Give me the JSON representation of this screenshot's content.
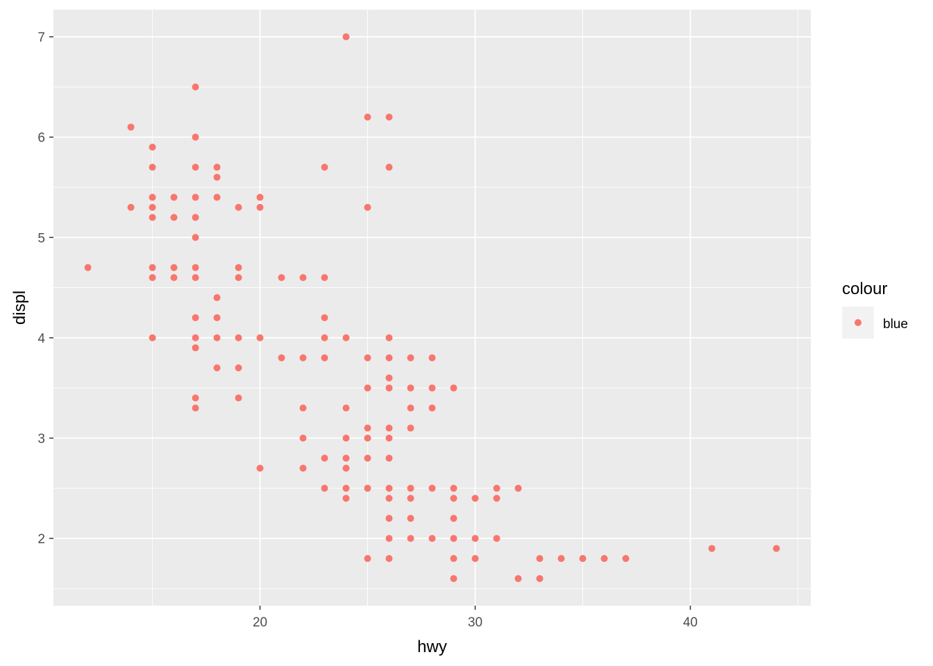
{
  "chart_data": {
    "type": "scatter",
    "title": "",
    "xlabel": "hwy",
    "ylabel": "displ",
    "xlim": [
      10.4,
      45.6
    ],
    "ylim": [
      1.33,
      7.27
    ],
    "x_ticks": [
      20,
      30,
      40
    ],
    "x_tick_labels": [
      "20",
      "30",
      "40"
    ],
    "x_minor_ticks": [
      15,
      25,
      35,
      45
    ],
    "y_ticks": [
      2,
      3,
      4,
      5,
      6,
      7
    ],
    "y_tick_labels": [
      "2",
      "3",
      "4",
      "5",
      "6",
      "7"
    ],
    "y_minor_ticks": [
      1.5,
      2.5,
      3.5,
      4.5,
      5.5,
      6.5
    ],
    "grid": true,
    "legend": {
      "title": "colour",
      "placement": "right",
      "entries": [
        {
          "label": "blue",
          "color": "#F8766D"
        }
      ]
    },
    "colors": {
      "point": "#F8766D",
      "panel_background": "#EBEBEB",
      "grid": "#FFFFFF"
    },
    "points": [
      [
        12,
        4.7
      ],
      [
        14,
        6.1
      ],
      [
        14,
        5.3
      ],
      [
        15,
        5.9
      ],
      [
        15,
        5.7
      ],
      [
        15,
        5.4
      ],
      [
        15,
        5.3
      ],
      [
        15,
        5.2
      ],
      [
        15,
        4.7
      ],
      [
        15,
        4.6
      ],
      [
        15,
        4.0
      ],
      [
        16,
        5.4
      ],
      [
        16,
        5.2
      ],
      [
        16,
        4.7
      ],
      [
        16,
        4.6
      ],
      [
        17,
        6.5
      ],
      [
        17,
        6.0
      ],
      [
        17,
        5.7
      ],
      [
        17,
        5.4
      ],
      [
        17,
        5.2
      ],
      [
        17,
        5.0
      ],
      [
        17,
        4.7
      ],
      [
        17,
        4.6
      ],
      [
        17,
        4.2
      ],
      [
        17,
        4.0
      ],
      [
        17,
        3.9
      ],
      [
        17,
        3.4
      ],
      [
        17,
        3.3
      ],
      [
        18,
        5.7
      ],
      [
        18,
        5.6
      ],
      [
        18,
        5.4
      ],
      [
        18,
        4.4
      ],
      [
        18,
        4.2
      ],
      [
        18,
        4.0
      ],
      [
        18,
        3.7
      ],
      [
        19,
        5.3
      ],
      [
        19,
        4.7
      ],
      [
        19,
        4.6
      ],
      [
        19,
        4.0
      ],
      [
        19,
        3.7
      ],
      [
        19,
        3.4
      ],
      [
        20,
        5.4
      ],
      [
        20,
        5.3
      ],
      [
        20,
        4.0
      ],
      [
        20,
        2.7
      ],
      [
        21,
        4.6
      ],
      [
        21,
        3.8
      ],
      [
        22,
        4.6
      ],
      [
        22,
        3.8
      ],
      [
        22,
        3.3
      ],
      [
        22,
        3.0
      ],
      [
        22,
        2.7
      ],
      [
        23,
        5.7
      ],
      [
        23,
        4.6
      ],
      [
        23,
        4.2
      ],
      [
        23,
        4.0
      ],
      [
        23,
        3.8
      ],
      [
        23,
        2.8
      ],
      [
        23,
        2.5
      ],
      [
        24,
        7.0
      ],
      [
        24,
        4.0
      ],
      [
        24,
        3.3
      ],
      [
        24,
        3.0
      ],
      [
        24,
        2.8
      ],
      [
        24,
        2.7
      ],
      [
        24,
        2.5
      ],
      [
        24,
        2.4
      ],
      [
        25,
        6.2
      ],
      [
        25,
        5.3
      ],
      [
        25,
        3.8
      ],
      [
        25,
        3.5
      ],
      [
        25,
        3.1
      ],
      [
        25,
        3.0
      ],
      [
        25,
        2.8
      ],
      [
        25,
        2.5
      ],
      [
        25,
        1.8
      ],
      [
        26,
        6.2
      ],
      [
        26,
        5.7
      ],
      [
        26,
        4.0
      ],
      [
        26,
        3.8
      ],
      [
        26,
        3.6
      ],
      [
        26,
        3.5
      ],
      [
        26,
        3.1
      ],
      [
        26,
        3.0
      ],
      [
        26,
        2.8
      ],
      [
        26,
        2.5
      ],
      [
        26,
        2.4
      ],
      [
        26,
        2.2
      ],
      [
        26,
        2.0
      ],
      [
        26,
        1.8
      ],
      [
        27,
        3.8
      ],
      [
        27,
        3.5
      ],
      [
        27,
        3.3
      ],
      [
        27,
        3.1
      ],
      [
        27,
        2.5
      ],
      [
        27,
        2.4
      ],
      [
        27,
        2.2
      ],
      [
        27,
        2.0
      ],
      [
        28,
        3.8
      ],
      [
        28,
        3.5
      ],
      [
        28,
        3.3
      ],
      [
        28,
        2.5
      ],
      [
        28,
        2.0
      ],
      [
        29,
        3.5
      ],
      [
        29,
        2.5
      ],
      [
        29,
        2.4
      ],
      [
        29,
        2.2
      ],
      [
        29,
        2.0
      ],
      [
        29,
        1.8
      ],
      [
        29,
        1.6
      ],
      [
        30,
        2.4
      ],
      [
        30,
        2.0
      ],
      [
        30,
        1.8
      ],
      [
        31,
        2.5
      ],
      [
        31,
        2.4
      ],
      [
        31,
        2.0
      ],
      [
        32,
        2.5
      ],
      [
        32,
        1.6
      ],
      [
        33,
        1.8
      ],
      [
        33,
        1.6
      ],
      [
        34,
        1.8
      ],
      [
        35,
        1.8
      ],
      [
        36,
        1.8
      ],
      [
        37,
        1.8
      ],
      [
        41,
        1.9
      ],
      [
        44,
        1.9
      ]
    ]
  }
}
